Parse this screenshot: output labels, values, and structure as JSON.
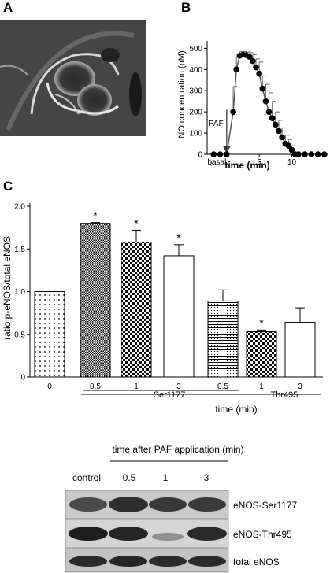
{
  "panels": {
    "a": "A",
    "b": "B",
    "c": "C"
  },
  "chart_data": [
    {
      "type": "line",
      "ylabel": "NO concentration (nM)",
      "xlabel": "time (min)",
      "yticks": [
        0,
        100,
        200,
        300,
        400,
        500
      ],
      "xticks": [
        "basal",
        "5",
        "10"
      ],
      "ylim": [
        0,
        520
      ],
      "annotation": "PAF",
      "x": [
        -2,
        -1,
        0,
        1,
        1.5,
        2,
        2.5,
        3,
        3.5,
        4,
        4.5,
        5,
        5.5,
        6,
        6.5,
        7,
        7.5,
        8,
        8.5,
        9,
        9.5,
        10,
        10.5,
        11,
        12,
        13,
        14,
        15
      ],
      "y": [
        0,
        0,
        0,
        200,
        400,
        465,
        470,
        468,
        460,
        440,
        410,
        380,
        310,
        250,
        200,
        170,
        140,
        110,
        80,
        50,
        40,
        20,
        0,
        0,
        0,
        0,
        0,
        0
      ],
      "error_upper": [
        0,
        0,
        0,
        120,
        60,
        20,
        15,
        15,
        20,
        30,
        40,
        55,
        60,
        80,
        90,
        80,
        60,
        50,
        45,
        40,
        30,
        20,
        0,
        0,
        0,
        0,
        0,
        0
      ]
    },
    {
      "type": "bar",
      "ylabel": "ratio p-eNOS/total eNOS",
      "xlabel": "time (min)",
      "ylim": [
        0,
        2.0
      ],
      "yticks": [
        "0",
        "0.5",
        "1.0",
        "1.5",
        "2.0"
      ],
      "categories": [
        "0",
        "0.5",
        "1",
        "3",
        "0.5",
        "1",
        "3"
      ],
      "groups": [
        {
          "label": "Ser1177",
          "indices": [
            1,
            2,
            3
          ]
        },
        {
          "label": "Thr495",
          "indices": [
            4,
            5,
            6
          ]
        }
      ],
      "values": [
        1.0,
        1.8,
        1.58,
        1.42,
        0.89,
        0.53,
        0.64
      ],
      "errors": [
        0.0,
        0.01,
        0.14,
        0.13,
        0.13,
        0.02,
        0.17
      ],
      "patterns": [
        "dots",
        "fine-check",
        "check",
        "solid",
        "stripe",
        "check",
        "solid"
      ],
      "significance": [
        "",
        "*",
        "*",
        "*",
        "",
        "*",
        ""
      ]
    }
  ],
  "blot": {
    "header": "time after PAF application (min)",
    "lanes": [
      "control",
      "0.5",
      "1",
      "3"
    ],
    "rows": [
      "eNOS-Ser1177",
      "eNOS-Thr495",
      "total eNOS"
    ]
  }
}
